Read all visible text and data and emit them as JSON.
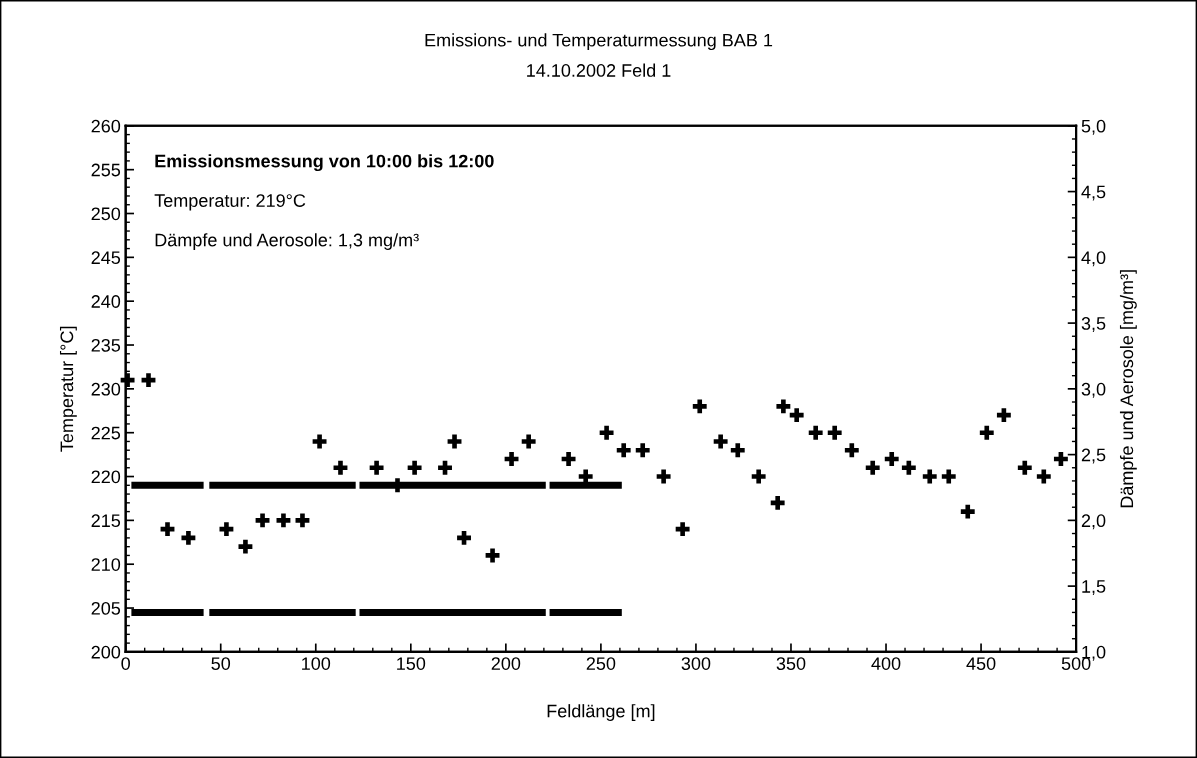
{
  "chart_data": {
    "type": "scatter",
    "title": "Emissions- und Temperaturmessung BAB 1",
    "subtitle": "14.10.2002 Feld 1",
    "xlabel": "Feldlänge [m]",
    "ylabel": "Temperatur [°C]",
    "y2label": "Dämpfe und Aerosole [mg/m³]",
    "annotations": [
      "Emissionsmessung von 10:00 bis 12:00",
      "Temperatur: 219°C",
      "Dämpfe und Aerosole: 1,3 mg/m³"
    ],
    "xlim": [
      0,
      500
    ],
    "xticks": [
      0,
      50,
      100,
      150,
      200,
      250,
      300,
      350,
      400,
      450,
      500
    ],
    "ylim": [
      200,
      260
    ],
    "yticks": [
      200,
      205,
      210,
      215,
      220,
      225,
      230,
      235,
      240,
      245,
      250,
      255,
      260
    ],
    "y2lim": [
      1.0,
      5.0
    ],
    "y2ticks": [
      {
        "value": 1.0,
        "label": "1,0"
      },
      {
        "value": 1.5,
        "label": "1,5"
      },
      {
        "value": 2.0,
        "label": "2,0"
      },
      {
        "value": 2.5,
        "label": "2,5"
      },
      {
        "value": 3.0,
        "label": "3,0"
      },
      {
        "value": 3.5,
        "label": "3,5"
      },
      {
        "value": 4.0,
        "label": "4,0"
      },
      {
        "value": 4.5,
        "label": "4,5"
      },
      {
        "value": 5.0,
        "label": "5,0"
      }
    ],
    "grid": false,
    "legend": false,
    "series": [
      {
        "marker": "cross",
        "color": "#000000",
        "x": [
          1,
          12,
          22,
          33,
          53,
          63,
          72,
          83,
          93,
          102,
          113,
          132,
          143,
          152,
          168,
          173,
          178,
          193,
          203,
          212,
          233,
          242,
          253,
          262,
          272,
          283,
          293,
          302,
          313,
          322,
          333,
          343,
          346,
          353,
          363,
          373,
          382,
          393,
          403,
          412,
          423,
          433,
          443,
          453,
          462,
          473,
          483,
          492
        ],
        "values": [
          231,
          231,
          214,
          213,
          214,
          212,
          215,
          215,
          215,
          224,
          221,
          221,
          219,
          221,
          221,
          224,
          213,
          211,
          222,
          224,
          222,
          220,
          225,
          223,
          223,
          220,
          214,
          228,
          224,
          223,
          220,
          217,
          228,
          227,
          225,
          225,
          223,
          221,
          222,
          221,
          220,
          220,
          216,
          225,
          227,
          221,
          220,
          222
        ]
      },
      {
        "type": "line",
        "color": "#000000",
        "x": [
          3,
          41,
          42,
          44,
          121,
          122,
          123,
          221,
          222,
          223,
          261
        ],
        "values": [
          219,
          219,
          null,
          219,
          219,
          null,
          219,
          219,
          null,
          219,
          219
        ]
      },
      {
        "type": "line",
        "color": "#000000",
        "axis": "y2",
        "x": [
          3,
          41,
          42,
          44,
          121,
          122,
          123,
          221,
          222,
          223,
          261
        ],
        "values": [
          1.3,
          1.3,
          null,
          1.3,
          1.3,
          null,
          1.3,
          1.3,
          null,
          1.3,
          1.3
        ]
      }
    ]
  }
}
